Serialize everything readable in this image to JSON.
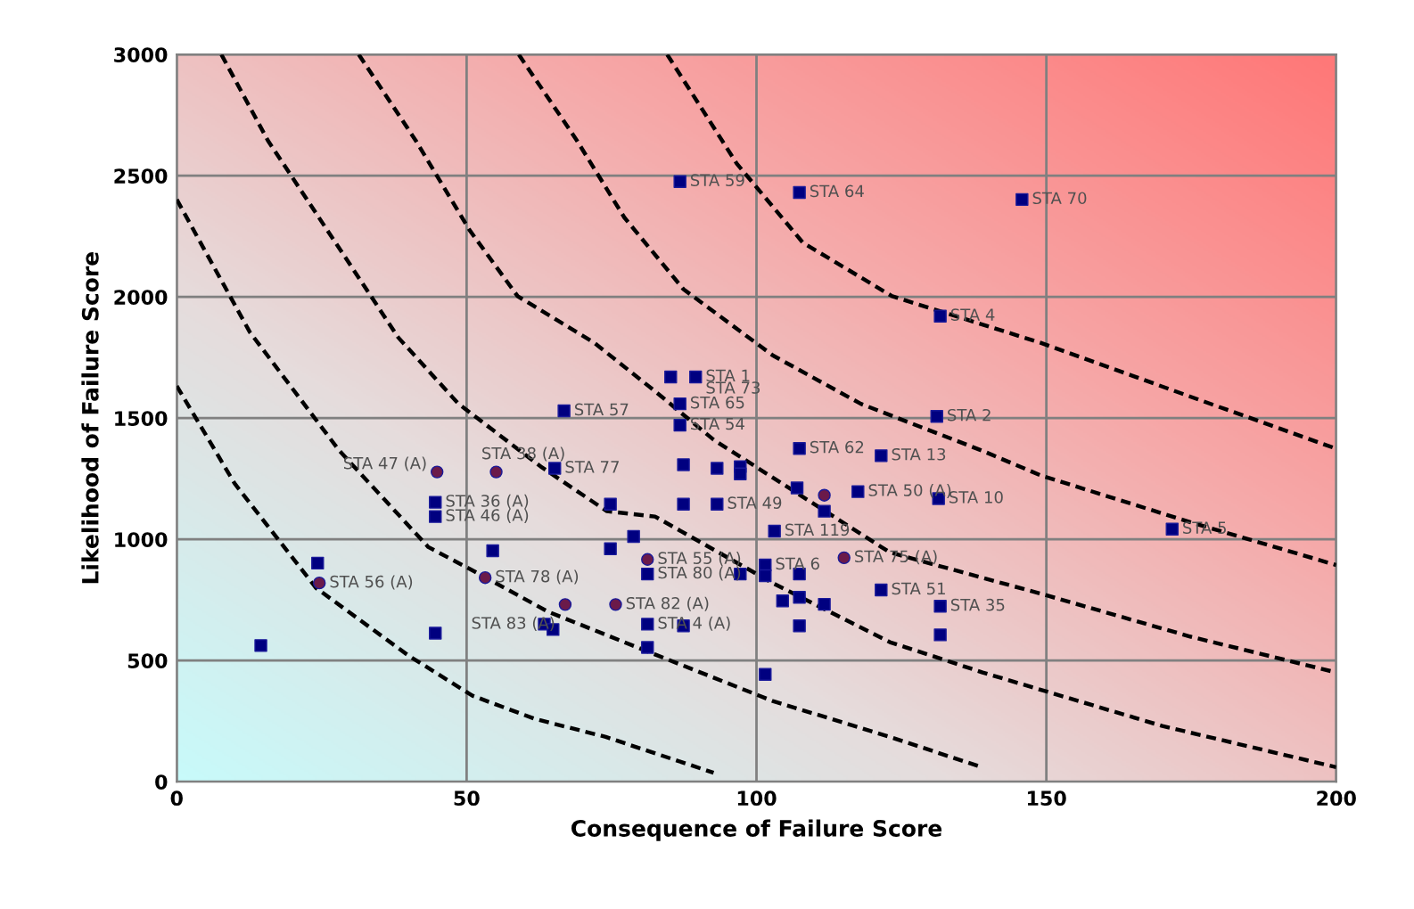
{
  "chart_data": {
    "type": "scatter",
    "xlabel": "Consequence of Failure Score",
    "ylabel": "Likelihood of Failure Score",
    "xlim": [
      0,
      200
    ],
    "ylim": [
      0,
      3000
    ],
    "xticks": [
      0,
      50,
      100,
      150,
      200
    ],
    "yticks": [
      0,
      500,
      1000,
      1500,
      2000,
      2500,
      3000
    ],
    "grid": true,
    "legend": false,
    "series": [
      {
        "marker": "square",
        "color": "#000080",
        "x": [
          86.8,
          107.4,
          145.8,
          131.7,
          85.2,
          89.5,
          86.8,
          86.8,
          66.8,
          131.1,
          107.4,
          121.5,
          87.4,
          93.2,
          97.2,
          97.2,
          107,
          117.5,
          131.4,
          111.7,
          74.8,
          87.4,
          93.2,
          78.8,
          74.8,
          81.2,
          97.2,
          101.5,
          101.5,
          107.4,
          103.1,
          104.5,
          107.4,
          111.7,
          107.4,
          101.5,
          81.2,
          87.4,
          63.4,
          64.9,
          121.5,
          131.7,
          131.7,
          171.7,
          24.3,
          44.6,
          14.5,
          44.6,
          44.6,
          65.2,
          54.5,
          81.2
        ],
        "values": [
          2476,
          2431,
          2402,
          1921,
          1670,
          1670,
          1559,
          1471,
          1530,
          1507,
          1375,
          1345,
          1308,
          1293,
          1300,
          1270,
          1212,
          1197,
          1168,
          1116,
          1145,
          1145,
          1145,
          1012,
          961,
          857,
          857,
          894,
          850,
          857,
          1034,
          746,
          761,
          732,
          643,
          443,
          554,
          643,
          650,
          628,
          791,
          724,
          606,
          1042,
          902,
          613,
          562,
          1153,
          1094,
          1293,
          953,
          650
        ]
      },
      {
        "marker": "circle",
        "color": "#6b1a4a",
        "x": [
          24.6,
          44.9,
          55.1,
          53.2,
          67,
          75.7,
          81.2,
          111.7,
          115.1
        ],
        "values": [
          820,
          1278,
          1278,
          842,
          731,
          731,
          917,
          1182,
          924
        ]
      },
      {
        "type": "line",
        "line_style": "dashed",
        "marker": "none",
        "color": "#000000",
        "x": [
          0,
          10,
          24,
          40,
          51,
          61.8,
          74,
          92.6
        ],
        "values": [
          1633,
          1230,
          800,
          520,
          355,
          259,
          185,
          37
        ]
      },
      {
        "type": "line",
        "line_style": "dashed",
        "marker": "none",
        "color": "#000000",
        "x": [
          0,
          12.6,
          28,
          43.4,
          51,
          64,
          82.5,
          102.8,
          123,
          139
        ],
        "values": [
          2402,
          1855,
          1367,
          968,
          872,
          702,
          525,
          333,
          185,
          59
        ]
      },
      {
        "type": "line",
        "line_style": "dashed",
        "marker": "none",
        "color": "#000000",
        "x": [
          7.7,
          15.7,
          28,
          38.2,
          48.6,
          62.8,
          74.2,
          82.5,
          102.8,
          123,
          139,
          170,
          200
        ],
        "values": [
          3000,
          2646,
          2202,
          1833,
          1559,
          1300,
          1116,
          1094,
          820,
          576,
          451,
          230,
          60
        ]
      },
      {
        "type": "line",
        "line_style": "dashed",
        "marker": "none",
        "color": "#000000",
        "x": [
          31.4,
          41.2,
          50.5,
          58.8,
          72,
          82.5,
          92.6,
          123,
          149,
          174.8,
          200
        ],
        "values": [
          3000,
          2646,
          2276,
          2003,
          1811,
          1611,
          1411,
          946,
          776,
          599,
          451
        ]
      },
      {
        "type": "line",
        "line_style": "dashed",
        "marker": "none",
        "color": "#000000",
        "x": [
          59,
          69,
          77.2,
          87.4,
          102.8,
          118,
          138.8,
          149,
          174.8,
          200
        ],
        "values": [
          3000,
          2646,
          2328,
          2032,
          1759,
          1559,
          1367,
          1264,
          1071,
          894
        ]
      },
      {
        "type": "line",
        "line_style": "dashed",
        "marker": "none",
        "color": "#000000",
        "x": [
          84.6,
          96.6,
          108,
          123.4,
          149,
          174.8,
          200
        ],
        "values": [
          3000,
          2550,
          2224,
          2003,
          1811,
          1589,
          1374
        ]
      }
    ],
    "annotations": [
      {
        "text": "STA 59",
        "x": 86.8,
        "y": 2476
      },
      {
        "text": "STA 64",
        "x": 107.4,
        "y": 2431
      },
      {
        "text": "STA 70",
        "x": 145.8,
        "y": 2402
      },
      {
        "text": "STA 4",
        "x": 131.7,
        "y": 1921
      },
      {
        "text": "STA 1",
        "x": 89.5,
        "y": 1670
      },
      {
        "text": "STA 73",
        "x": 89.5,
        "y": 1620
      },
      {
        "text": "STA 65",
        "x": 86.8,
        "y": 1559
      },
      {
        "text": "STA 54",
        "x": 86.8,
        "y": 1471
      },
      {
        "text": "STA 57",
        "x": 66.8,
        "y": 1530
      },
      {
        "text": "STA 2",
        "x": 131.1,
        "y": 1507
      },
      {
        "text": "STA 62",
        "x": 107.4,
        "y": 1375
      },
      {
        "text": "STA 13",
        "x": 121.5,
        "y": 1345
      },
      {
        "text": "STA 10",
        "x": 131.4,
        "y": 1168
      },
      {
        "text": "STA 50 (A)",
        "x": 117.5,
        "y": 1197
      },
      {
        "text": "STA 49",
        "x": 93.2,
        "y": 1145
      },
      {
        "text": "STA 77",
        "x": 65.2,
        "y": 1293
      },
      {
        "text": "STA 47 (A)",
        "x": 44.9,
        "y": 1278
      },
      {
        "text": "STA 38 (A)",
        "x": 55.1,
        "y": 1278
      },
      {
        "text": "STA 36 (A)",
        "x": 44.6,
        "y": 1153
      },
      {
        "text": "STA 46 (A)",
        "x": 44.6,
        "y": 1094
      },
      {
        "text": "STA 56 (A)",
        "x": 24.6,
        "y": 820
      },
      {
        "text": "STA 78 (A)",
        "x": 53.2,
        "y": 842
      },
      {
        "text": "STA 80 (A)",
        "x": 81.2,
        "y": 857
      },
      {
        "text": "STA 82 (A)",
        "x": 75.7,
        "y": 731
      },
      {
        "text": "STA 83 (A)",
        "x": 67,
        "y": 731
      },
      {
        "text": "STA 4 (A)",
        "x": 81.2,
        "y": 650
      },
      {
        "text": "STA 55 (A)",
        "x": 81.2,
        "y": 917
      },
      {
        "text": "STA 6",
        "x": 101.5,
        "y": 894
      },
      {
        "text": "STA 51",
        "x": 121.5,
        "y": 791
      },
      {
        "text": "STA 35",
        "x": 131.7,
        "y": 724
      },
      {
        "text": "STA 5",
        "x": 171.7,
        "y": 1042
      },
      {
        "text": "STA 75 (A)",
        "x": 115.1,
        "y": 924
      },
      {
        "text": "STA 119",
        "x": 103.1,
        "y": 1034
      }
    ]
  }
}
